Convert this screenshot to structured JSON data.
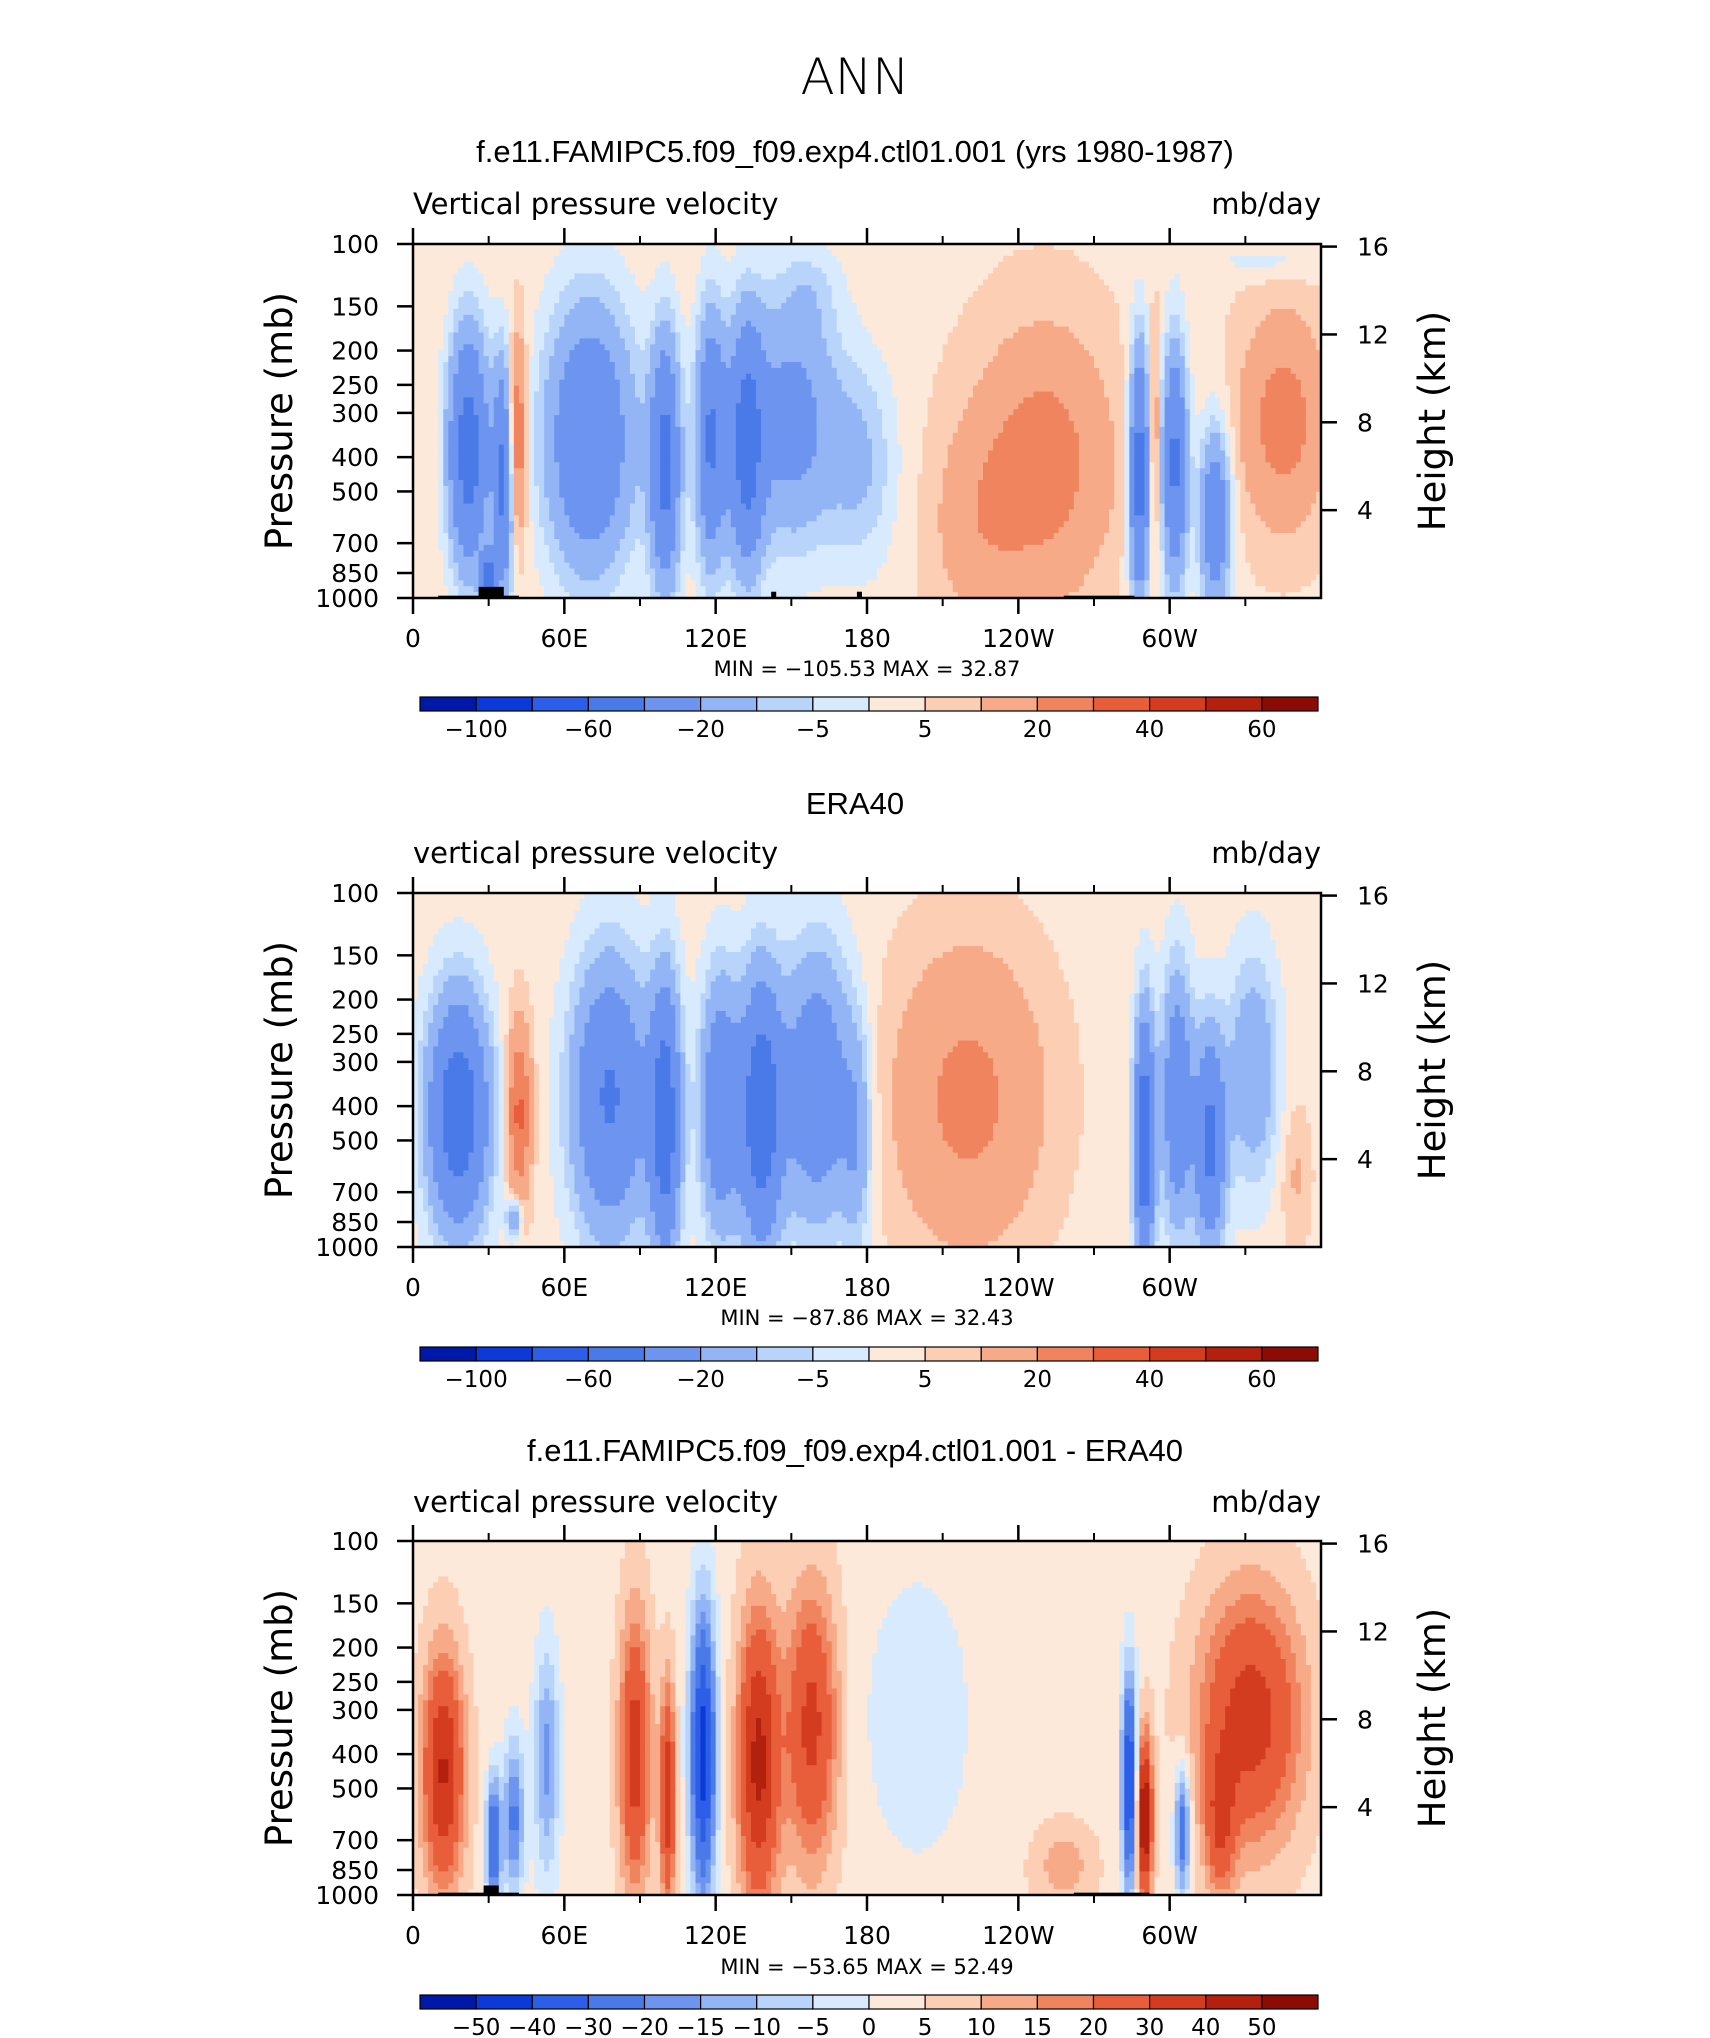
{
  "figure": {
    "title": "ANN"
  },
  "chart_data": [
    {
      "type": "heatmap",
      "title": "f.e11.FAMIPC5.f09_f09.exp4.ctl01.001 (yrs 1980-1987)",
      "subtitle_left": "Vertical pressure velocity",
      "subtitle_right": "mb/day",
      "ylabel": "Pressure (mb)",
      "ylabel_right": "Height (km)",
      "x_ticks": [
        "0",
        "60E",
        "120E",
        "180",
        "120W",
        "60W"
      ],
      "y_ticks": [
        "100",
        "150",
        "200",
        "250",
        "300",
        "400",
        "500",
        "700",
        "850",
        "1000"
      ],
      "y2_ticks": [
        "16",
        "12",
        "8",
        "4"
      ],
      "stats": "MIN = −105.53   MAX =   32.87",
      "colorbar_labels": [
        "−100",
        "−60",
        "−20",
        "−5",
        "5",
        "20",
        "40",
        "60"
      ],
      "levels": [
        -100,
        -80,
        -60,
        -40,
        -20,
        -10,
        -5,
        0,
        5,
        10,
        20,
        30,
        40,
        50,
        60
      ],
      "xlim": [
        0,
        360
      ],
      "ylim": [
        1000,
        100
      ],
      "grid": false
    },
    {
      "type": "heatmap",
      "title": "ERA40",
      "subtitle_left": "vertical pressure velocity",
      "subtitle_right": "mb/day",
      "ylabel": "Pressure (mb)",
      "ylabel_right": "Height (km)",
      "x_ticks": [
        "0",
        "60E",
        "120E",
        "180",
        "120W",
        "60W"
      ],
      "y_ticks": [
        "100",
        "150",
        "200",
        "250",
        "300",
        "400",
        "500",
        "700",
        "850",
        "1000"
      ],
      "y2_ticks": [
        "16",
        "12",
        "8",
        "4"
      ],
      "stats": "MIN = −87.86   MAX =   32.43",
      "colorbar_labels": [
        "−100",
        "−60",
        "−20",
        "−5",
        "5",
        "20",
        "40",
        "60"
      ],
      "levels": [
        -100,
        -80,
        -60,
        -40,
        -20,
        -10,
        -5,
        0,
        5,
        10,
        20,
        30,
        40,
        50,
        60
      ],
      "xlim": [
        0,
        360
      ],
      "ylim": [
        1000,
        100
      ],
      "grid": false
    },
    {
      "type": "heatmap",
      "title": "f.e11.FAMIPC5.f09_f09.exp4.ctl01.001 - ERA40",
      "subtitle_left": "vertical pressure velocity",
      "subtitle_right": "mb/day",
      "ylabel": "Pressure (mb)",
      "ylabel_right": "Height (km)",
      "x_ticks": [
        "0",
        "60E",
        "120E",
        "180",
        "120W",
        "60W"
      ],
      "y_ticks": [
        "100",
        "150",
        "200",
        "250",
        "300",
        "400",
        "500",
        "700",
        "850",
        "1000"
      ],
      "y2_ticks": [
        "16",
        "12",
        "8",
        "4"
      ],
      "stats": "MIN = −53.65   MAX =   52.49",
      "colorbar_labels": [
        "−50",
        "−40",
        "−30",
        "−20",
        "−15",
        "−10",
        "−5",
        "0",
        "5",
        "10",
        "15",
        "20",
        "30",
        "40",
        "50"
      ],
      "levels": [
        -50,
        -40,
        -30,
        -20,
        -15,
        -10,
        -5,
        0,
        5,
        10,
        15,
        20,
        30,
        40,
        50
      ],
      "xlim": [
        0,
        360
      ],
      "ylim": [
        1000,
        100
      ],
      "grid": false
    }
  ],
  "palette": [
    "#000066",
    "#0018a8",
    "#0c3ad8",
    "#2c5ee8",
    "#4a7ae8",
    "#6d95f0",
    "#93b5f5",
    "#b8d4fa",
    "#d8eafd",
    "#fde9da",
    "#fccfb5",
    "#f7aa87",
    "#f0845e",
    "#e85e3a",
    "#d33c1f",
    "#b3200e",
    "#8c0c05",
    "#5e0000"
  ]
}
